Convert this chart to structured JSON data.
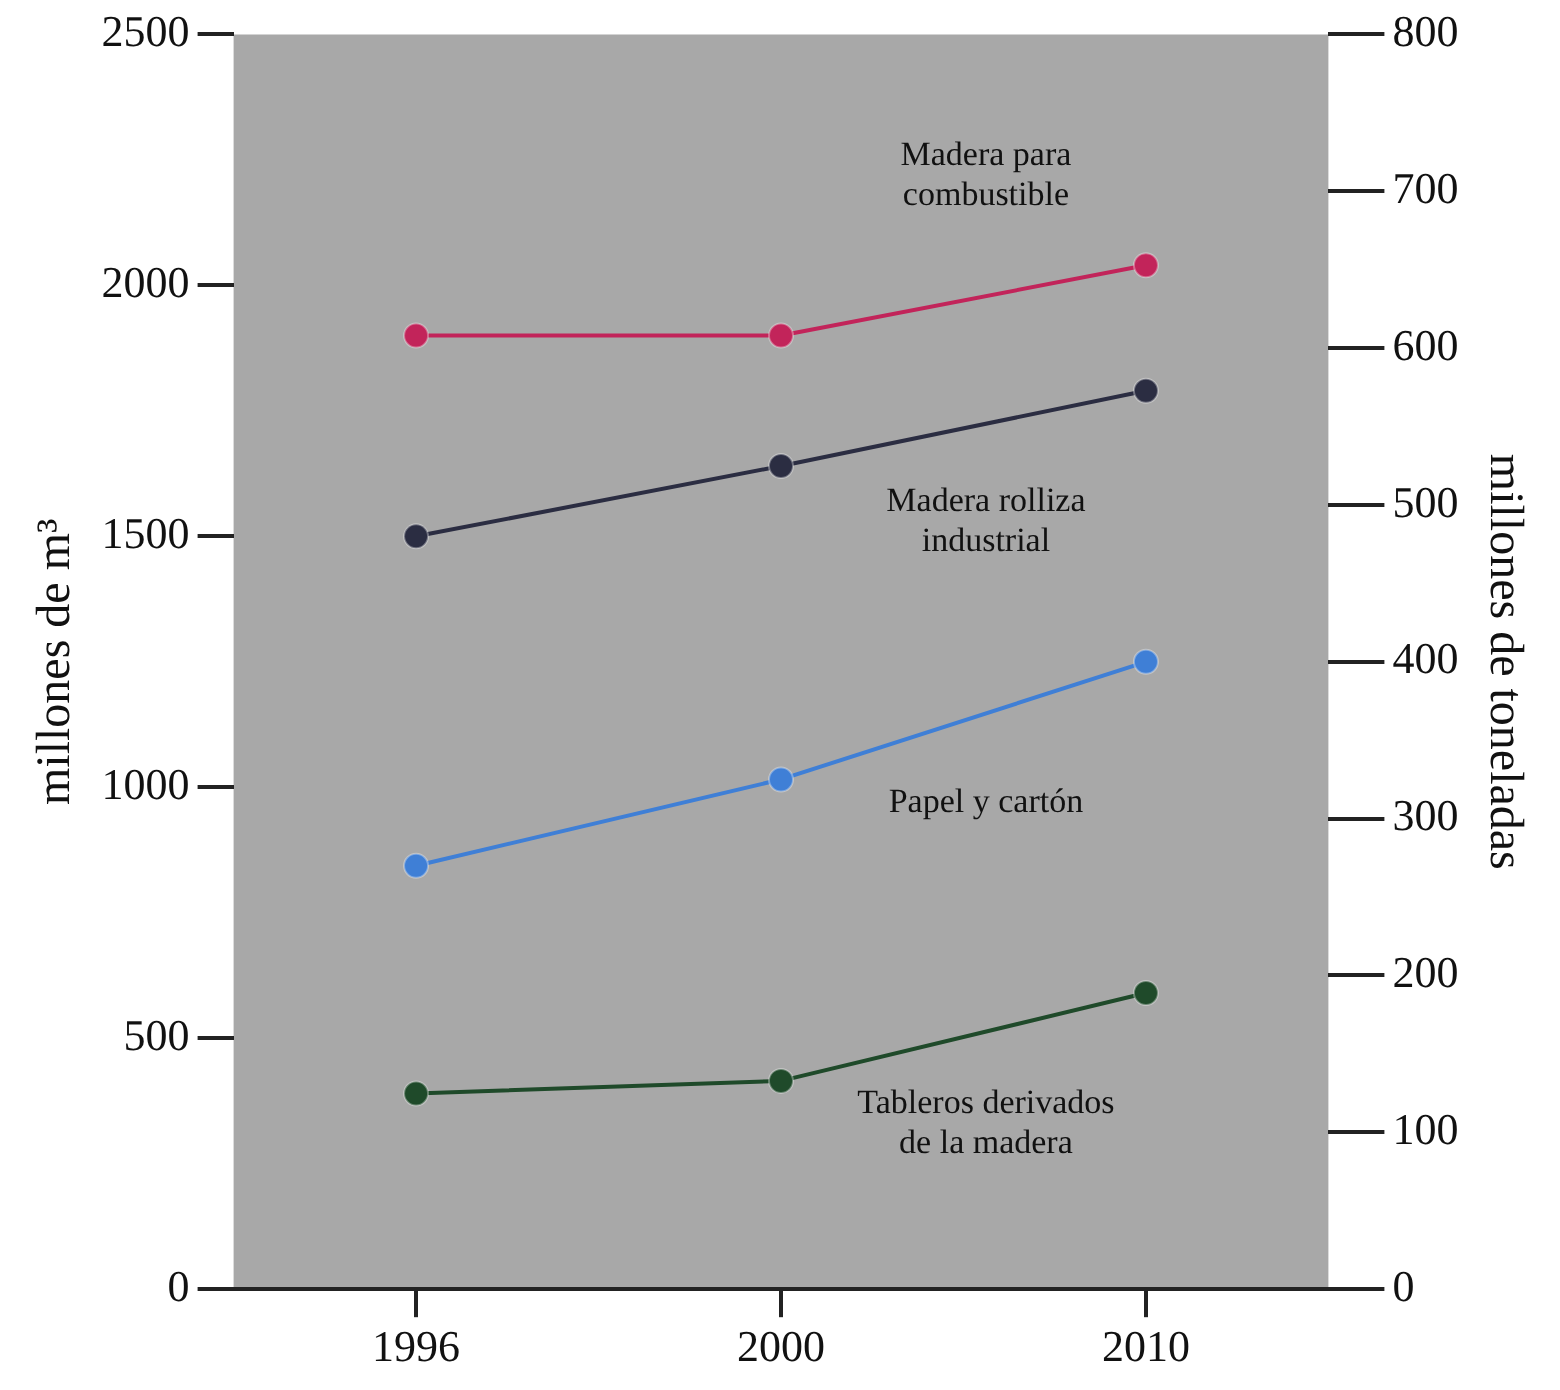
{
  "chart_data": {
    "type": "line",
    "categories": [
      "1996",
      "2000",
      "2010"
    ],
    "ylabel": "millones de m³",
    "y2label": "millones de toneladas",
    "ylim": [
      0,
      2500
    ],
    "yticks": [
      0,
      500,
      1000,
      1500,
      2000,
      2500
    ],
    "y2lim": [
      0,
      800
    ],
    "y2ticks": [
      0,
      100,
      200,
      300,
      400,
      500,
      600,
      700,
      800
    ],
    "grid": false,
    "legend": false,
    "marker": "circle",
    "line_style": "solid",
    "series": [
      {
        "name": "Madera para combustible",
        "color": "#c2245a",
        "values": [
          1900,
          1900,
          2040
        ]
      },
      {
        "name": "Madera rolliza industrial",
        "color": "#2b2d42",
        "values": [
          1500,
          1640,
          1790
        ]
      },
      {
        "name": "Papel y cartón",
        "color": "#3f7fd6",
        "axis": "y2",
        "values": [
          270,
          325,
          400
        ]
      },
      {
        "name": "Tableros derivados de la madera",
        "color": "#1f4a2a",
        "values": [
          390,
          415,
          590
        ]
      }
    ]
  }
}
